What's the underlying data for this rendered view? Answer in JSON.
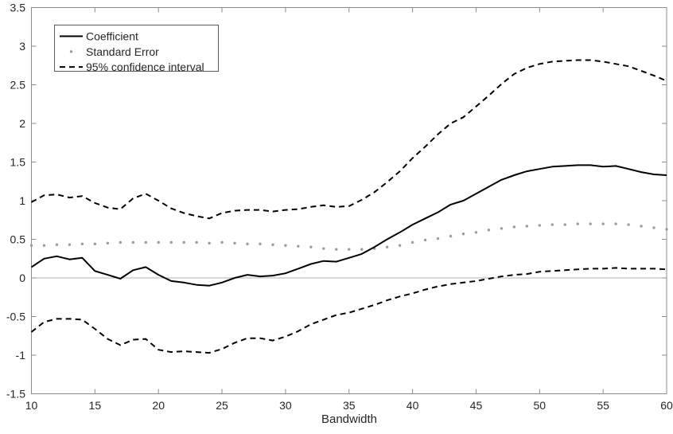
{
  "figure": {
    "background": "#ffffff",
    "spine_color": "#8c8c8c",
    "zero_line_color": "#b3b3b3",
    "text_color": "#262626"
  },
  "legend": {
    "items": [
      {
        "label": "Coefficient",
        "style": "solid",
        "color": "#000000"
      },
      {
        "label": "Standard Error",
        "style": "dot",
        "color": "#9c9c9c"
      },
      {
        "label": "95% confidence interval",
        "style": "dashed",
        "color": "#000000"
      }
    ]
  },
  "chart_data": {
    "type": "line",
    "title": "",
    "xlabel": "Bandwidth",
    "ylabel": "",
    "xlim": [
      10,
      60
    ],
    "ylim": [
      -1.5,
      3.5
    ],
    "grid": false,
    "zero_line": true,
    "legend_position": "top-left",
    "x_tick_values": [
      10,
      15,
      20,
      25,
      30,
      35,
      40,
      45,
      50,
      55,
      60
    ],
    "x_tick_labels": [
      "10",
      "15",
      "20",
      "25",
      "30",
      "35",
      "40",
      "45",
      "50",
      "55",
      "60"
    ],
    "y_tick_values": [
      -1.5,
      -1,
      -0.5,
      0,
      0.5,
      1,
      1.5,
      2,
      2.5,
      3,
      3.5
    ],
    "y_tick_labels": [
      "-1.5",
      "-1",
      "-0.5",
      "0",
      "0.5",
      "1",
      "1.5",
      "2",
      "2.5",
      "3",
      "3.5"
    ],
    "x": [
      10,
      11,
      12,
      13,
      14,
      15,
      16,
      17,
      18,
      19,
      20,
      21,
      22,
      23,
      24,
      25,
      26,
      27,
      28,
      29,
      30,
      31,
      32,
      33,
      34,
      35,
      36,
      37,
      38,
      39,
      40,
      41,
      42,
      43,
      44,
      45,
      46,
      47,
      48,
      49,
      50,
      51,
      52,
      53,
      54,
      55,
      56,
      57,
      58,
      59,
      60
    ],
    "series": [
      {
        "name": "95% CI upper",
        "style": "dashed",
        "color": "#000000",
        "values": [
          0.98,
          1.07,
          1.08,
          1.04,
          1.06,
          0.97,
          0.91,
          0.89,
          1.03,
          1.09,
          1.0,
          0.9,
          0.84,
          0.8,
          0.77,
          0.84,
          0.87,
          0.88,
          0.88,
          0.86,
          0.88,
          0.89,
          0.92,
          0.94,
          0.92,
          0.93,
          1.01,
          1.11,
          1.24,
          1.38,
          1.55,
          1.7,
          1.86,
          2.0,
          2.08,
          2.22,
          2.36,
          2.51,
          2.64,
          2.72,
          2.77,
          2.8,
          2.81,
          2.82,
          2.82,
          2.8,
          2.77,
          2.74,
          2.68,
          2.62,
          2.55
        ]
      },
      {
        "name": "95% CI lower",
        "style": "dashed",
        "color": "#000000",
        "values": [
          -0.7,
          -0.57,
          -0.53,
          -0.53,
          -0.54,
          -0.66,
          -0.79,
          -0.87,
          -0.8,
          -0.79,
          -0.93,
          -0.96,
          -0.95,
          -0.96,
          -0.97,
          -0.92,
          -0.84,
          -0.78,
          -0.78,
          -0.81,
          -0.76,
          -0.69,
          -0.6,
          -0.54,
          -0.48,
          -0.45,
          -0.4,
          -0.35,
          -0.29,
          -0.24,
          -0.2,
          -0.15,
          -0.11,
          -0.08,
          -0.06,
          -0.04,
          -0.01,
          0.02,
          0.04,
          0.05,
          0.08,
          0.09,
          0.1,
          0.11,
          0.12,
          0.12,
          0.13,
          0.12,
          0.12,
          0.12,
          0.11
        ]
      },
      {
        "name": "Standard Error",
        "style": "dots",
        "color": "#9c9c9c",
        "values": [
          0.42,
          0.42,
          0.43,
          0.43,
          0.44,
          0.44,
          0.45,
          0.46,
          0.46,
          0.46,
          0.46,
          0.46,
          0.46,
          0.46,
          0.45,
          0.46,
          0.45,
          0.44,
          0.44,
          0.43,
          0.42,
          0.41,
          0.4,
          0.38,
          0.37,
          0.37,
          0.37,
          0.38,
          0.4,
          0.42,
          0.46,
          0.49,
          0.51,
          0.54,
          0.57,
          0.59,
          0.62,
          0.64,
          0.66,
          0.67,
          0.68,
          0.69,
          0.69,
          0.7,
          0.7,
          0.7,
          0.7,
          0.69,
          0.67,
          0.65,
          0.63
        ]
      },
      {
        "name": "Coefficient",
        "style": "solid",
        "color": "#000000",
        "values": [
          0.14,
          0.25,
          0.28,
          0.24,
          0.26,
          0.09,
          0.04,
          -0.01,
          0.1,
          0.14,
          0.04,
          -0.04,
          -0.06,
          -0.09,
          -0.1,
          -0.06,
          0.0,
          0.04,
          0.02,
          0.03,
          0.06,
          0.12,
          0.18,
          0.22,
          0.21,
          0.26,
          0.31,
          0.4,
          0.5,
          0.59,
          0.69,
          0.77,
          0.85,
          0.95,
          1.0,
          1.09,
          1.18,
          1.27,
          1.33,
          1.38,
          1.41,
          1.44,
          1.45,
          1.46,
          1.46,
          1.44,
          1.45,
          1.41,
          1.37,
          1.34,
          1.33
        ]
      }
    ]
  }
}
